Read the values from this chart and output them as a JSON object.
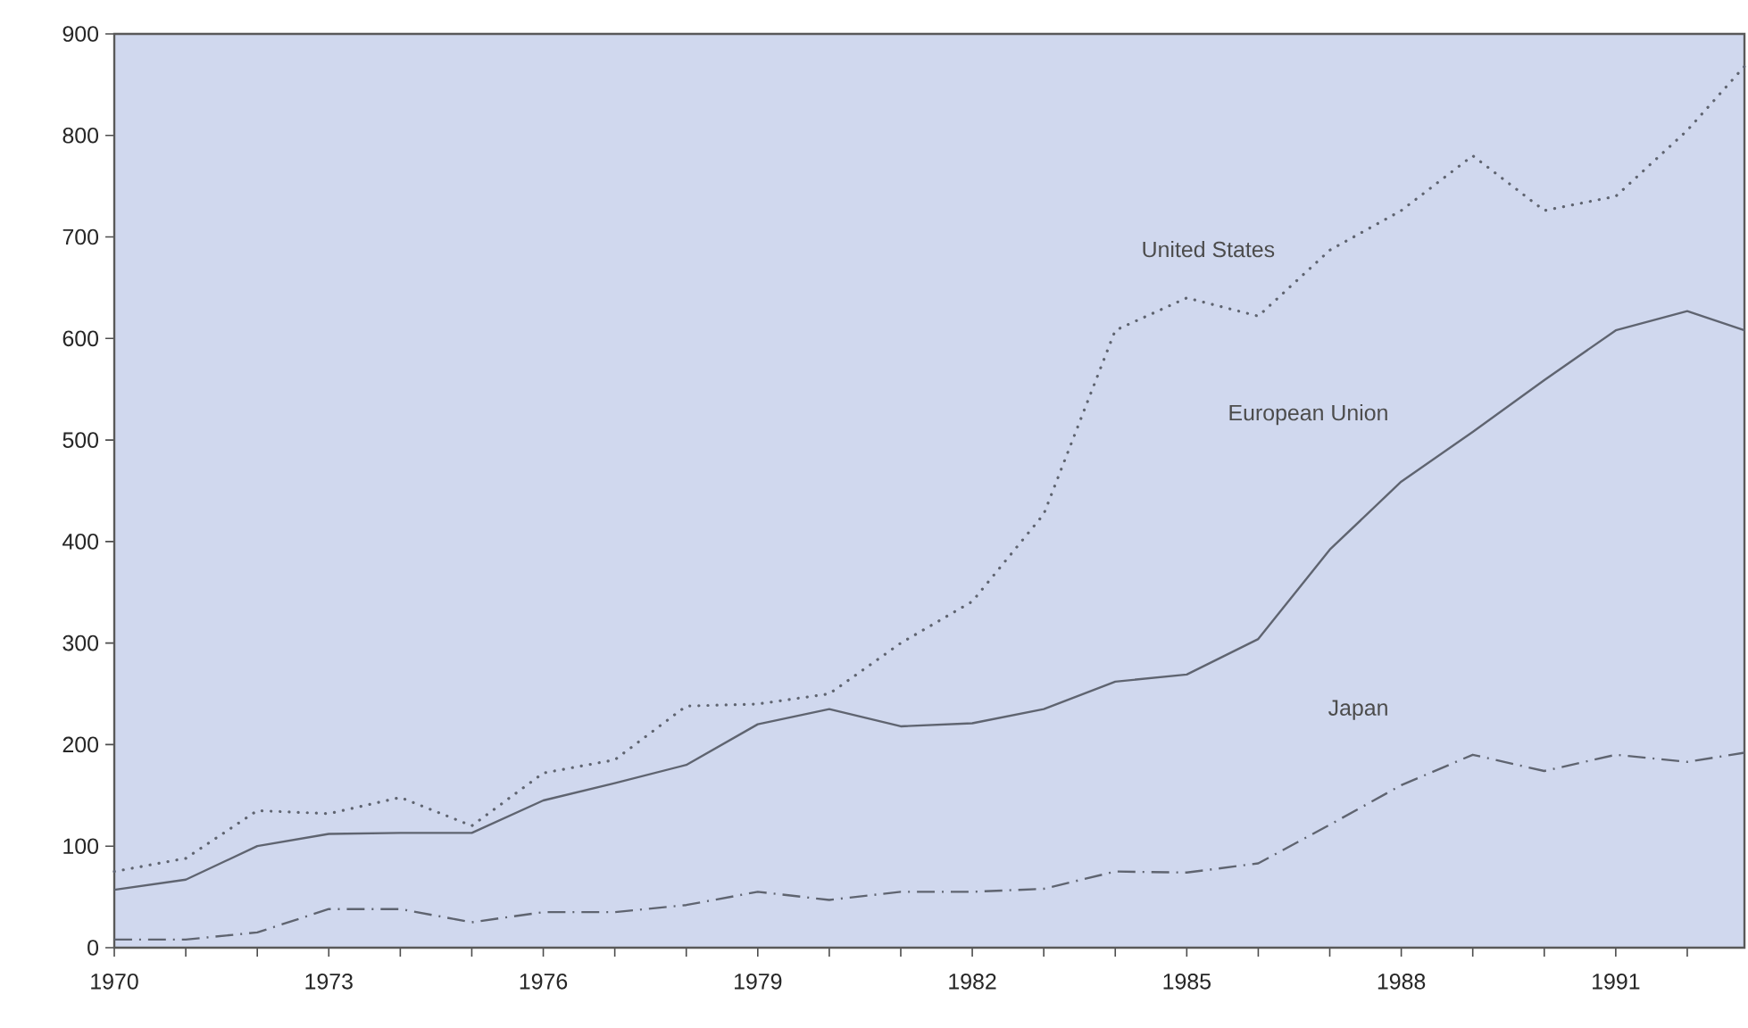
{
  "chart_data": {
    "type": "line",
    "x": [
      1970,
      1971,
      1972,
      1973,
      1974,
      1975,
      1976,
      1977,
      1978,
      1979,
      1980,
      1981,
      1982,
      1983,
      1984,
      1985,
      1986,
      1987,
      1988,
      1989,
      1990,
      1991,
      1992,
      1992.8
    ],
    "series": [
      {
        "name": "United States",
        "color": "#5f6470",
        "line_style": "dotted",
        "values": [
          75,
          88,
          135,
          132,
          148,
          120,
          172,
          185,
          238,
          240,
          250,
          300,
          341,
          427,
          608,
          640,
          622,
          687,
          726,
          780,
          726,
          740,
          805,
          868
        ]
      },
      {
        "name": "European Union",
        "color": "#5f6470",
        "line_style": "solid",
        "values": [
          57,
          67,
          100,
          112,
          113,
          113,
          145,
          162,
          180,
          220,
          235,
          218,
          221,
          235,
          262,
          269,
          304,
          392,
          459,
          508,
          559,
          608,
          627,
          608
        ]
      },
      {
        "name": "Japan",
        "color": "#5f6470",
        "line_style": "dashdot",
        "values": [
          8,
          8,
          15,
          38,
          38,
          25,
          35,
          35,
          42,
          55,
          47,
          55,
          55,
          58,
          75,
          74,
          83,
          121,
          160,
          190,
          174,
          190,
          183,
          192
        ]
      }
    ],
    "xlim": [
      1970,
      1992.8
    ],
    "xticks": [
      1970,
      {
        "value": 1971,
        "label": null
      },
      {
        "value": 1972,
        "label": null
      },
      1973,
      {
        "value": 1974,
        "label": null
      },
      {
        "value": 1975,
        "label": null
      },
      1976,
      {
        "value": 1977,
        "label": null
      },
      {
        "value": 1978,
        "label": null
      },
      1979,
      {
        "value": 1980,
        "label": null
      },
      {
        "value": 1981,
        "label": null
      },
      1982,
      {
        "value": 1983,
        "label": null
      },
      {
        "value": 1984,
        "label": null
      },
      1985,
      {
        "value": 1986,
        "label": null
      },
      {
        "value": 1987,
        "label": null
      },
      1988,
      {
        "value": 1989,
        "label": null
      },
      {
        "value": 1990,
        "label": null
      },
      1991,
      {
        "value": 1992,
        "label": null
      }
    ],
    "ylim": [
      0,
      900
    ],
    "yticks": [
      0,
      100,
      200,
      300,
      400,
      500,
      600,
      700,
      800,
      900
    ],
    "grid": false,
    "legend": false
  }
}
